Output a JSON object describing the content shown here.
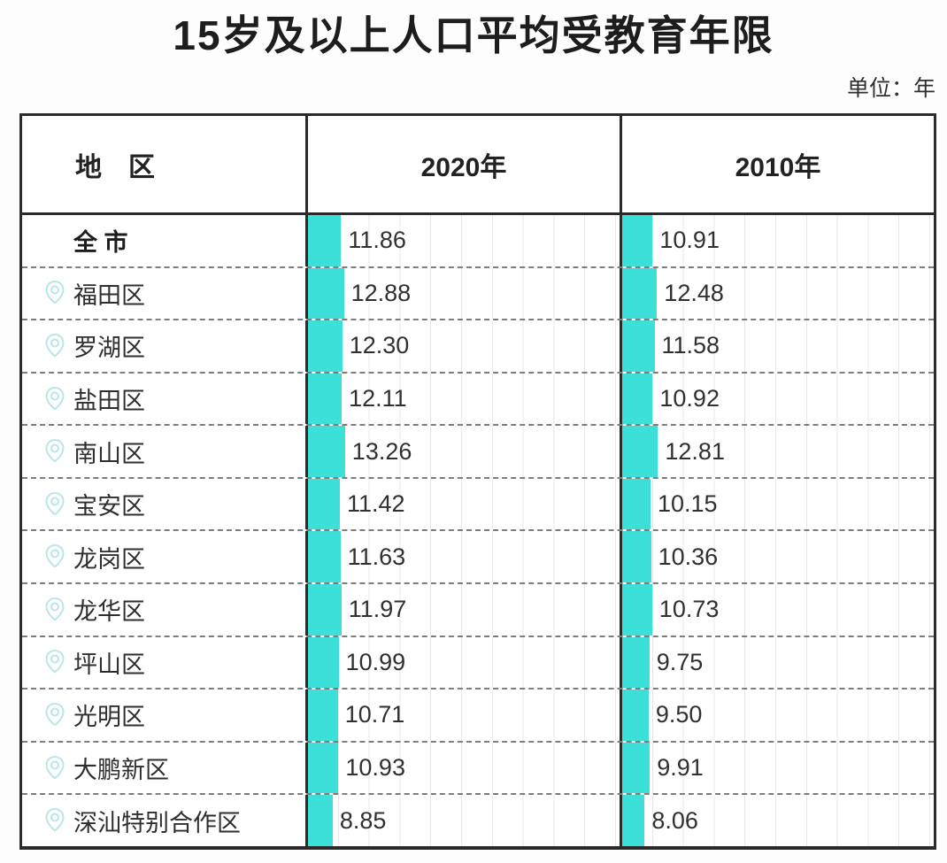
{
  "title": "15岁及以上人口平均受教育年限",
  "unit_label": "单位：年",
  "columns": {
    "region": "地　区",
    "y2020": "2020年",
    "y2010": "2010年"
  },
  "rows": [
    {
      "region": "全 市",
      "bold": true,
      "pin": false,
      "v2020": "11.86",
      "v2010": "10.91"
    },
    {
      "region": "福田区",
      "bold": false,
      "pin": true,
      "v2020": "12.88",
      "v2010": "12.48"
    },
    {
      "region": "罗湖区",
      "bold": false,
      "pin": true,
      "v2020": "12.30",
      "v2010": "11.58"
    },
    {
      "region": "盐田区",
      "bold": false,
      "pin": true,
      "v2020": "12.11",
      "v2010": "10.92"
    },
    {
      "region": "南山区",
      "bold": false,
      "pin": true,
      "v2020": "13.26",
      "v2010": "12.81"
    },
    {
      "region": "宝安区",
      "bold": false,
      "pin": true,
      "v2020": "11.42",
      "v2010": "10.15"
    },
    {
      "region": "龙岗区",
      "bold": false,
      "pin": true,
      "v2020": "11.63",
      "v2010": "10.36"
    },
    {
      "region": "龙华区",
      "bold": false,
      "pin": true,
      "v2020": "11.97",
      "v2010": "10.73"
    },
    {
      "region": "坪山区",
      "bold": false,
      "pin": true,
      "v2020": "10.99",
      "v2010": "9.75"
    },
    {
      "region": "光明区",
      "bold": false,
      "pin": true,
      "v2020": "10.71",
      "v2010": "9.50"
    },
    {
      "region": "大鹏新区",
      "bold": false,
      "pin": true,
      "v2020": "10.93",
      "v2010": "9.91"
    },
    {
      "region": "深汕特别合作区",
      "bold": false,
      "pin": true,
      "v2020": "8.85",
      "v2010": "8.06"
    }
  ],
  "colors": {
    "bar": "#3ce0d9",
    "pin_icon": "#b9e6e8",
    "border": "#2a2a2a",
    "dashed": "#7d7d7d",
    "gridline": "#e8e8e8",
    "title_text": "#1d1d1d",
    "body_text": "#2e2e2e"
  },
  "chart_data": {
    "type": "bar",
    "title": "15岁及以上人口平均受教育年限",
    "unit": "年",
    "orientation": "horizontal",
    "value_labels_shown": true,
    "grid": "faint vertical gridlines in value columns, dashed row separators",
    "legend_position": "column headers (2020年 / 2010年)",
    "categories": [
      "全市",
      "福田区",
      "罗湖区",
      "盐田区",
      "南山区",
      "宝安区",
      "龙岗区",
      "龙华区",
      "坪山区",
      "光明区",
      "大鹏新区",
      "深汕特别合作区"
    ],
    "series": [
      {
        "name": "2020年",
        "values": [
          11.86,
          12.88,
          12.3,
          12.11,
          13.26,
          11.42,
          11.63,
          11.97,
          10.99,
          10.71,
          10.93,
          8.85
        ]
      },
      {
        "name": "2010年",
        "values": [
          10.91,
          12.48,
          11.58,
          10.92,
          12.81,
          10.15,
          10.36,
          10.73,
          9.75,
          9.5,
          9.91,
          8.06
        ]
      }
    ]
  }
}
